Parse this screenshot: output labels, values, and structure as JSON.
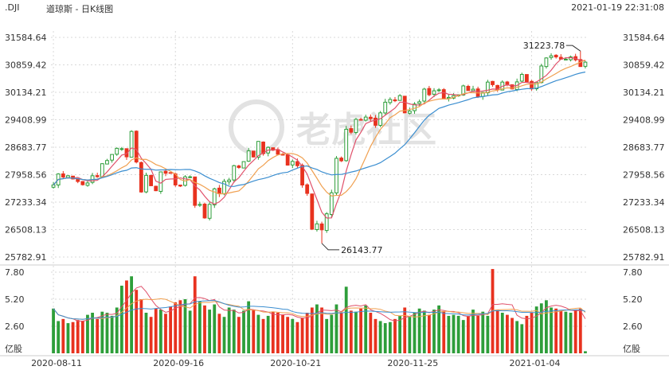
{
  "header": {
    "symbol": ".DJI",
    "name": "道琼斯 - 日K线图",
    "datetime": "2021-01-19 22:31:08"
  },
  "watermark": "老虎社区",
  "colors": {
    "up": "#2e9e3a",
    "down": "#e8321f",
    "ma5": "#e0506a",
    "ma10": "#f0a050",
    "ma20": "#3b8ed0",
    "grid": "#d9d9d9"
  },
  "chart_data": [
    {
      "type": "candlestick",
      "y_ticks": [
        "31584.64",
        "30859.42",
        "30134.21",
        "29408.99",
        "28683.77",
        "27958.56",
        "27233.34",
        "26508.13",
        "25782.91"
      ],
      "ylim": [
        25782.91,
        31584.64
      ],
      "x_tick_labels": [
        "2020-08-11",
        "2020-09-16",
        "2020-10-21",
        "2020-11-25",
        "2021-01-04"
      ],
      "x_tick_index": [
        0,
        25,
        49,
        73,
        98
      ],
      "annotations": [
        {
          "text": "31223.78",
          "index": 108,
          "value": 31223.78,
          "kind": "high"
        },
        {
          "text": "26143.77",
          "index": 55,
          "value": 26143.77,
          "kind": "low"
        }
      ],
      "close": [
        27686.91,
        27976.84,
        27896.66,
        27931.02,
        27844.91,
        27778.07,
        27692.88,
        27739.73,
        27930.33,
        27905.02,
        28248.44,
        28331.92,
        28492.27,
        28653.87,
        28645.66,
        28430.05,
        29100.5,
        28292.73,
        27500.89,
        27940.47,
        27665.64,
        27534.58,
        28032.38,
        27995.6,
        27993.33,
        27686.38,
        27657.42,
        27902.0,
        27901.98,
        27147.7,
        27173.96,
        26815.44,
        27173.96,
        27584.06,
        27452.66,
        27781.7,
        27816.9,
        28195.42,
        28148.64,
        28303.46,
        28586.9,
        28425.51,
        28837.52,
        28514.0,
        28679.81,
        28606.31,
        28497.0,
        28494.2,
        28210.82,
        28308.79,
        28195.42,
        27685.38,
        27463.19,
        26519.95,
        26659.11,
        26501.6,
        26925.05,
        27480.03,
        28390.18,
        28323.4,
        29157.97,
        29080.17,
        29420.92,
        29397.63,
        29479.81,
        29438.42,
        29263.48,
        29591.27,
        29872.47,
        29945.04,
        29910.37,
        30046.24,
        29591.27,
        29638.64,
        29823.92,
        29883.79,
        30218.26,
        30069.79,
        30173.88,
        30199.31,
        29969.52,
        29999.26,
        30046.37,
        30068.81,
        30303.37,
        30179.05,
        30216.45,
        30015.51,
        30129.83,
        30403.97,
        30335.67,
        30199.87,
        30403.97,
        30335.67,
        30223.89,
        30409.56,
        30606.48,
        30409.56,
        30223.89,
        30391.6,
        30829.4,
        31041.13,
        31097.97,
        31068.69,
        31008.69,
        31008.69,
        31068.69,
        30991.52,
        30814.26,
        30930.52
      ],
      "volume_y_ticks": [
        "7.80",
        "5.20",
        "2.60"
      ],
      "volume_ylim": [
        0,
        7.8
      ],
      "volume_unit": "亿股",
      "volume": [
        4.3,
        3.1,
        3.3,
        2.9,
        3.0,
        3.2,
        3.1,
        3.7,
        3.9,
        3.3,
        4.0,
        3.9,
        3.6,
        4.4,
        6.5,
        7.0,
        7.4,
        6.1,
        5.2,
        3.9,
        3.5,
        4.3,
        4.2,
        3.8,
        4.5,
        4.9,
        5.1,
        5.2,
        4.1,
        7.4,
        5.0,
        4.6,
        4.2,
        4.7,
        3.8,
        3.5,
        4.4,
        4.2,
        3.5,
        4.1,
        5.0,
        4.2,
        3.7,
        3.3,
        3.6,
        4.0,
        3.9,
        3.7,
        3.5,
        3.3,
        3.0,
        3.4,
        3.9,
        4.4,
        4.7,
        4.4,
        3.3,
        3.7,
        4.7,
        3.9,
        6.4,
        4.1,
        4.0,
        4.3,
        4.6,
        3.9,
        3.3,
        3.1,
        2.9,
        3.0,
        3.3,
        3.6,
        4.4,
        3.5,
        3.9,
        4.3,
        4.1,
        3.7,
        4.2,
        4.6,
        4.0,
        3.6,
        3.7,
        3.6,
        3.2,
        3.6,
        4.2,
        3.6,
        4.0,
        3.6,
        8.1,
        4.2,
        3.9,
        3.7,
        3.4,
        3.1,
        2.8,
        3.6,
        3.9,
        4.5,
        4.8,
        5.1,
        4.4,
        4.3,
        4.1,
        4.0,
        3.9,
        4.2,
        4.3,
        0.2
      ]
    }
  ]
}
